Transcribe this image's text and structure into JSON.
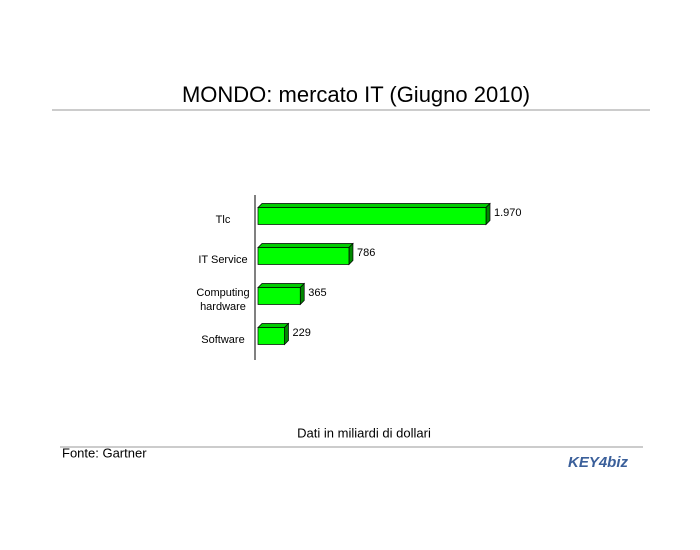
{
  "chart_data": {
    "type": "hbar",
    "title": "MONDO: mercato IT (Giugno 2010)",
    "categories": [
      "Tlc",
      "IT Service",
      "Computing hardware",
      "Software"
    ],
    "values": [
      1970,
      786,
      365,
      229
    ],
    "value_labels": [
      "1.970",
      "786",
      "365",
      "229"
    ],
    "color": "#00ff00",
    "note": "Dati in miliardi di dollari"
  },
  "footer": {
    "source": "Fonte: Gartner",
    "logo": "KEY4biz"
  }
}
